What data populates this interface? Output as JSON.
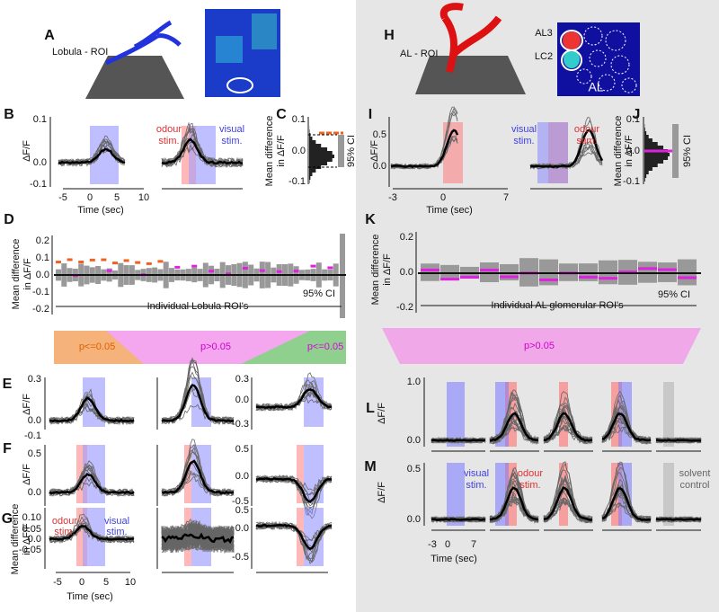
{
  "left": {
    "A": {
      "label": "A",
      "roi": "Lobula - ROI"
    },
    "B": {
      "label": "B",
      "ylabel": "ΔF/F",
      "yticks": [
        "0.1",
        "0.0",
        "-0.1"
      ],
      "xticks": [
        "-5",
        "0",
        "5",
        "10"
      ],
      "xlabel": "Time (sec)",
      "odour": [
        "odour",
        "stim."
      ],
      "visual": [
        "visual",
        "stim."
      ]
    },
    "C": {
      "label": "C",
      "ylabel": [
        "Mean difference",
        "in ΔF/F"
      ],
      "yticks": [
        "0.1",
        "0.0",
        "-0.1"
      ],
      "ci": "95% CI"
    },
    "D": {
      "label": "D",
      "ylabel": [
        "Mean difference",
        "in ΔF/F"
      ],
      "yticks": [
        "0.2",
        "0.1",
        "0.0",
        "-0.1",
        "-0.2"
      ],
      "ci": "95% CI",
      "xlabel": "Individual Lobula ROI's"
    },
    "groups": [
      "p<=0.05",
      "p>0.05",
      "p<=0.05"
    ],
    "E": {
      "label": "E",
      "ylabel": "ΔF/F",
      "yticks": [
        "0.3",
        "0.0",
        "-0.1"
      ],
      "yticks_right": [
        "0.3",
        "0.0",
        "-0.3"
      ]
    },
    "F": {
      "label": "F",
      "ylabel": "ΔF/F",
      "yticks": [
        "0.5",
        "0.0"
      ],
      "yticks_right": [
        "0.5",
        "0.0",
        "-0.5"
      ]
    },
    "G": {
      "label": "G",
      "ylabel": [
        "Mean difference",
        "in ΔF/F"
      ],
      "yticks": [
        "0.10",
        "0.05",
        "0.0",
        "-0.05"
      ],
      "yticks_right": [
        "0.5",
        "0.0",
        "-0.5"
      ],
      "odour": [
        "odour",
        "stim."
      ],
      "visual": [
        "visual",
        "stim."
      ],
      "xticks": [
        "-5",
        "0",
        "5",
        "10"
      ],
      "xlabel": "Time (sec)"
    }
  },
  "right": {
    "H": {
      "label": "H",
      "roi": "AL - ROI",
      "glomeruli": [
        "AL3",
        "LC2"
      ],
      "region": "AL"
    },
    "I": {
      "label": "I",
      "ylabel": "ΔF/F",
      "yticks": [
        "0.5",
        "0.0"
      ],
      "xticks": [
        "-3",
        "0",
        "7"
      ],
      "xlabel": "Time (sec)",
      "visual": [
        "visual",
        "stim."
      ],
      "odour": [
        "odour",
        "stim."
      ]
    },
    "J": {
      "label": "J",
      "ylabel": [
        "Mean difference",
        "in ΔF/F"
      ],
      "yticks": [
        "0.1",
        "0.0",
        "-0.1"
      ],
      "ci": "95% CI"
    },
    "K": {
      "label": "K",
      "ylabel": [
        "Mean difference",
        "in ΔF/F"
      ],
      "yticks": [
        "0.2",
        "0.0",
        "-0.2"
      ],
      "ci": "95% CI",
      "xlabel": "Individual AL glomerular ROI's"
    },
    "group": "p>0.05",
    "L": {
      "label": "L",
      "ylabel": "ΔF/F",
      "yticks": [
        "1.0",
        "0.0"
      ]
    },
    "M": {
      "label": "M",
      "ylabel": "ΔF/F",
      "yticks": [
        "0.5",
        "0.0"
      ],
      "visual": [
        "visual",
        "stim."
      ],
      "odour": [
        "odour",
        "stim."
      ],
      "control": [
        "solvent",
        "control"
      ],
      "xticks": [
        "-3",
        "0",
        "7"
      ],
      "xlabel": "Time (sec)"
    }
  }
}
